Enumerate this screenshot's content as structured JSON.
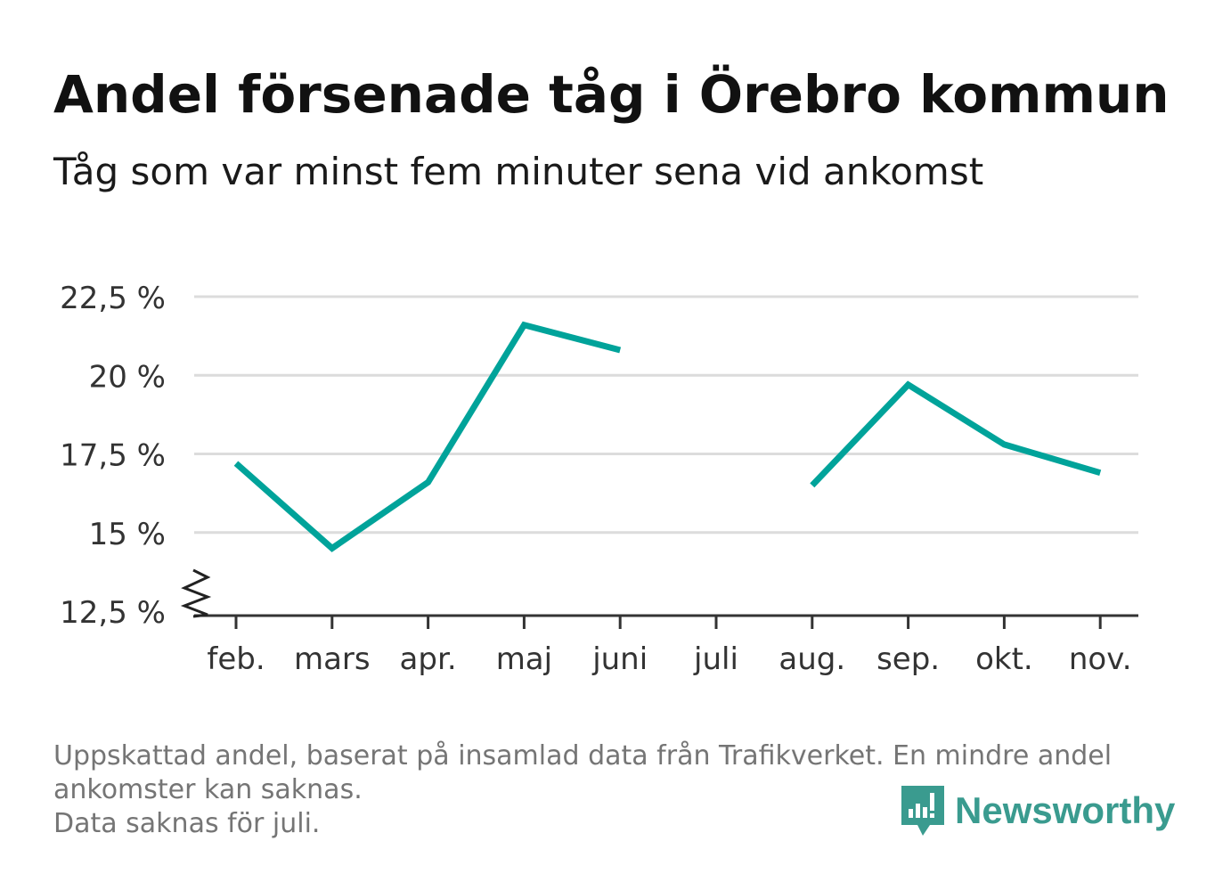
{
  "title": "Andel försenade tåg i Örebro kommun",
  "subtitle": "Tåg som var minst fem minuter sena vid ankomst",
  "footnote": {
    "line1": "Uppskattad andel, baserat på insamlad data från Trafikverket. En mindre andel",
    "line2": "ankomster kan saknas.",
    "line3": "Data saknas för juli."
  },
  "brand": {
    "name": "Newsworthy",
    "icon": "newsworthy-logo-icon",
    "color": "#3a9b8f"
  },
  "colors": {
    "line": "#00a39a",
    "grid": "#dcdcdc",
    "axis": "#333333"
  },
  "chart_data": {
    "type": "line",
    "title": "Andel försenade tåg i Örebro kommun",
    "categories": [
      "feb.",
      "mars",
      "apr.",
      "maj",
      "juni",
      "juli",
      "aug.",
      "sep.",
      "okt.",
      "nov."
    ],
    "series": [
      {
        "values": [
          17.2,
          14.5,
          16.6,
          21.6,
          20.8,
          null,
          16.5,
          19.7,
          17.8,
          16.9
        ]
      }
    ],
    "yticks": [
      "12,5 %",
      "15 %",
      "17,5 %",
      "20 %",
      "22,5 %"
    ],
    "ytick_values": [
      12.5,
      15,
      17.5,
      20,
      22.5
    ],
    "ylim": [
      12.5,
      22.5
    ],
    "axis_break": true,
    "grid": true,
    "xlabel": "",
    "ylabel": ""
  }
}
